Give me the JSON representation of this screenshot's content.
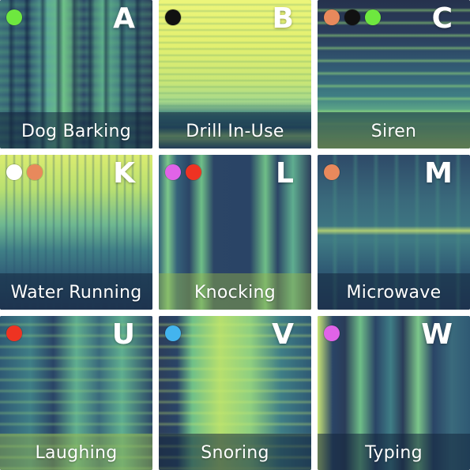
{
  "tiles": [
    {
      "label": "Dog Barking",
      "letter": "A",
      "dots": [
        "green-dot"
      ],
      "dot_colors": [
        "#6ee83f"
      ]
    },
    {
      "label": "Drill In-Use",
      "letter": "B",
      "dots": [
        "black-dot"
      ],
      "dot_colors": [
        "#111111"
      ]
    },
    {
      "label": "Siren",
      "letter": "C",
      "dots": [
        "orange-dot",
        "black-dot",
        "green-dot"
      ],
      "dot_colors": [
        "#e8895c",
        "#111111",
        "#6ee83f"
      ]
    },
    {
      "label": "Water Running",
      "letter": "K",
      "dots": [
        "white-dot",
        "orange-dot"
      ],
      "dot_colors": [
        "#ffffff",
        "#e8895c"
      ]
    },
    {
      "label": "Knocking",
      "letter": "L",
      "dots": [
        "magenta-dot",
        "red-dot"
      ],
      "dot_colors": [
        "#e063e8",
        "#ee3322"
      ]
    },
    {
      "label": "Microwave",
      "letter": "M",
      "dots": [
        "orange-dot"
      ],
      "dot_colors": [
        "#e8895c"
      ]
    },
    {
      "label": "Laughing",
      "letter": "U",
      "dots": [
        "red-dot"
      ],
      "dot_colors": [
        "#ee3322"
      ]
    },
    {
      "label": "Snoring",
      "letter": "V",
      "dots": [
        "blue-dot"
      ],
      "dot_colors": [
        "#43b4ee"
      ]
    },
    {
      "label": "Typing",
      "letter": "W",
      "dots": [
        "magenta-dot"
      ],
      "dot_colors": [
        "#e063e8"
      ]
    }
  ]
}
